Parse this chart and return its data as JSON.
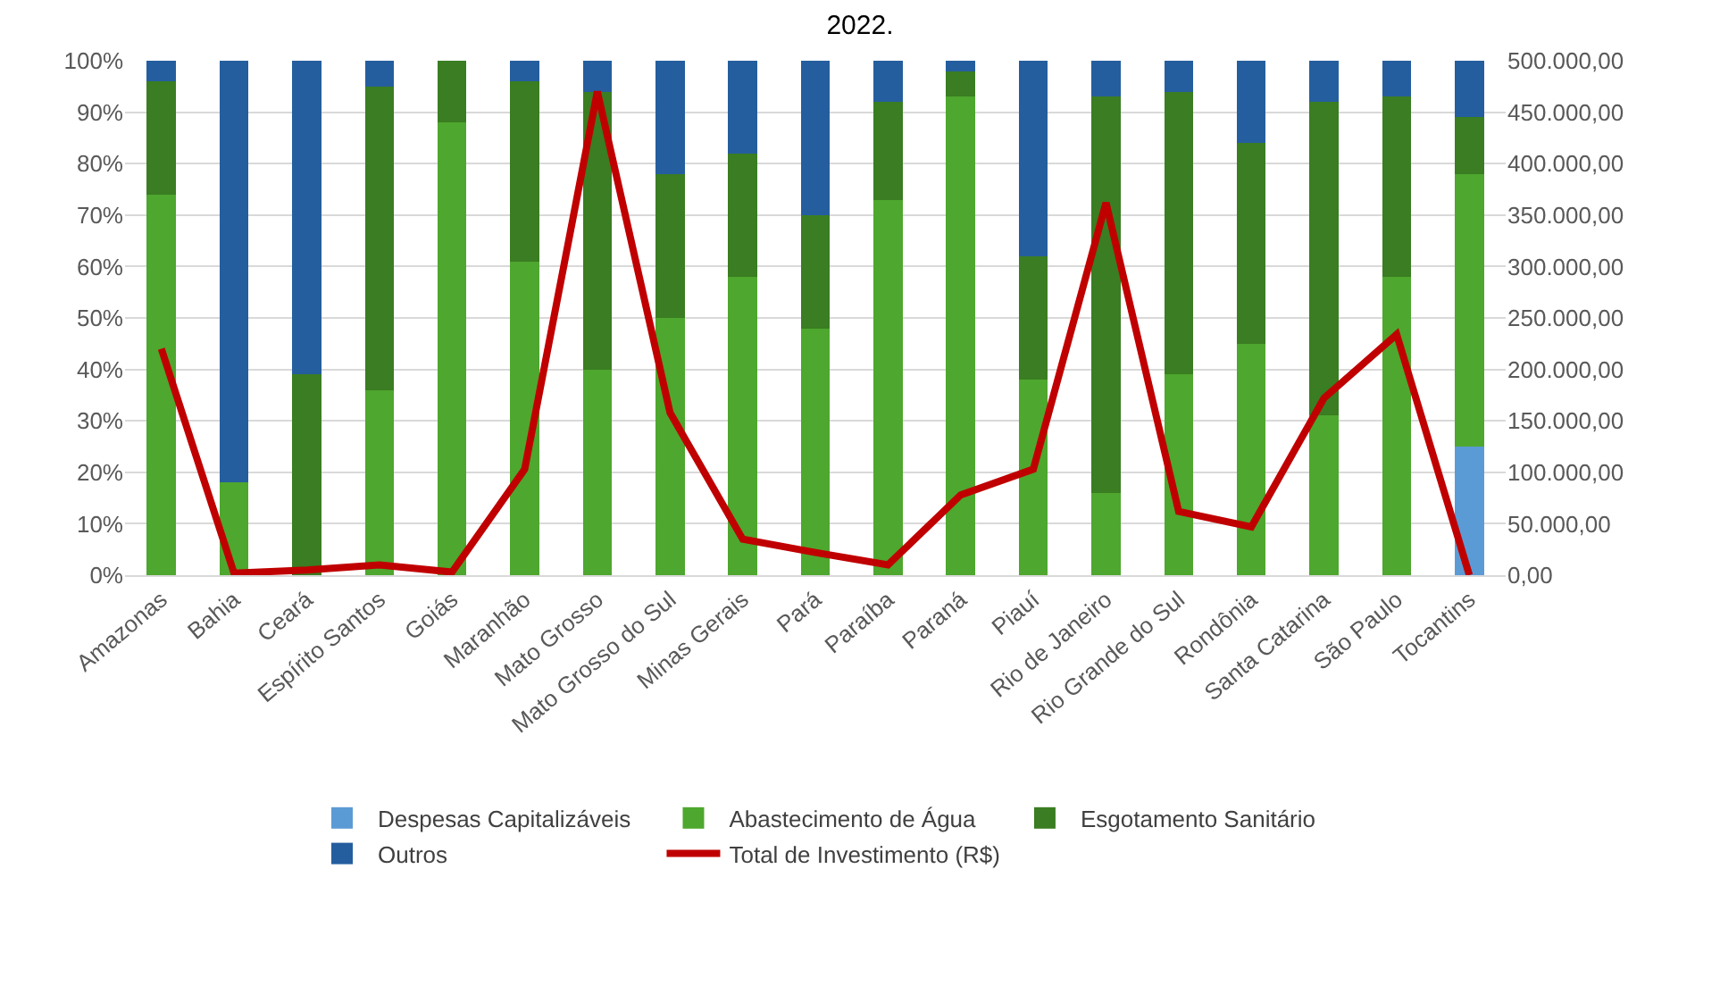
{
  "chart_data": {
    "type": "bar",
    "title": "2022.",
    "stacked": true,
    "categories": [
      "Amazonas",
      "Bahia",
      "Ceará",
      "Espírito Santos",
      "Goiás",
      "Maranhão",
      "Mato Grosso",
      "Mato Grosso do Sul",
      "Minas Gerais",
      "Pará",
      "Paraíba",
      "Paraná",
      "Piauí",
      "Rio de Janeiro",
      "Rio Grande do Sul",
      "Rondônia",
      "Santa Catarina",
      "São Paulo",
      "Tocantins"
    ],
    "series": [
      {
        "name": "Despesas Capitalizáveis",
        "color": "#5b9bd5",
        "values": [
          0,
          0,
          0,
          0,
          0,
          0,
          0,
          0,
          0,
          0,
          0,
          0,
          0,
          0,
          0,
          0,
          0,
          0,
          25
        ]
      },
      {
        "name": "Abastecimento de Água",
        "color": "#4ea72e",
        "values": [
          74,
          18,
          0,
          36,
          88,
          61,
          40,
          50,
          58,
          48,
          73,
          93,
          38,
          16,
          39,
          45,
          31,
          58,
          53
        ]
      },
      {
        "name": "Esgotamento Sanitário",
        "color": "#3a7d22",
        "values": [
          22,
          0,
          39,
          59,
          12,
          35,
          54,
          28,
          24,
          22,
          19,
          5,
          24,
          77,
          55,
          39,
          61,
          35,
          11
        ]
      },
      {
        "name": "Outros",
        "color": "#255e9e",
        "values": [
          4,
          82,
          61,
          5,
          0,
          4,
          6,
          22,
          18,
          30,
          8,
          2,
          38,
          7,
          6,
          16,
          8,
          7,
          11
        ]
      },
      {
        "name": "Total de Investimento (R$)",
        "type": "line",
        "axis": "y2",
        "color": "#c00000",
        "values": [
          220000,
          2000,
          5000,
          10000,
          3000,
          103000,
          470000,
          158000,
          35000,
          22000,
          10000,
          78000,
          103000,
          362000,
          62000,
          47000,
          172000,
          234000,
          0
        ]
      }
    ],
    "ylim": [
      0,
      100
    ],
    "yticks": [
      {
        "value": 0,
        "label": "0%"
      },
      {
        "value": 10,
        "label": "10%"
      },
      {
        "value": 20,
        "label": "20%"
      },
      {
        "value": 30,
        "label": "30%"
      },
      {
        "value": 40,
        "label": "40%"
      },
      {
        "value": 50,
        "label": "50%"
      },
      {
        "value": 60,
        "label": "60%"
      },
      {
        "value": 70,
        "label": "70%"
      },
      {
        "value": 80,
        "label": "80%"
      },
      {
        "value": 90,
        "label": "90%"
      },
      {
        "value": 100,
        "label": "100%"
      }
    ],
    "y2lim": [
      0,
      500000
    ],
    "y2ticks": [
      {
        "value": 0,
        "label": "0,00"
      },
      {
        "value": 50000,
        "label": "50.000,00"
      },
      {
        "value": 100000,
        "label": "100.000,00"
      },
      {
        "value": 150000,
        "label": "150.000,00"
      },
      {
        "value": 200000,
        "label": "200.000,00"
      },
      {
        "value": 250000,
        "label": "250.000,00"
      },
      {
        "value": 300000,
        "label": "300.000,00"
      },
      {
        "value": 350000,
        "label": "350.000,00"
      },
      {
        "value": 400000,
        "label": "400.000,00"
      },
      {
        "value": 450000,
        "label": "450.000,00"
      },
      {
        "value": 500000,
        "label": "500.000,00"
      }
    ],
    "grid": "y",
    "legend": "bottom",
    "marker": "none",
    "line_style": "solid"
  }
}
